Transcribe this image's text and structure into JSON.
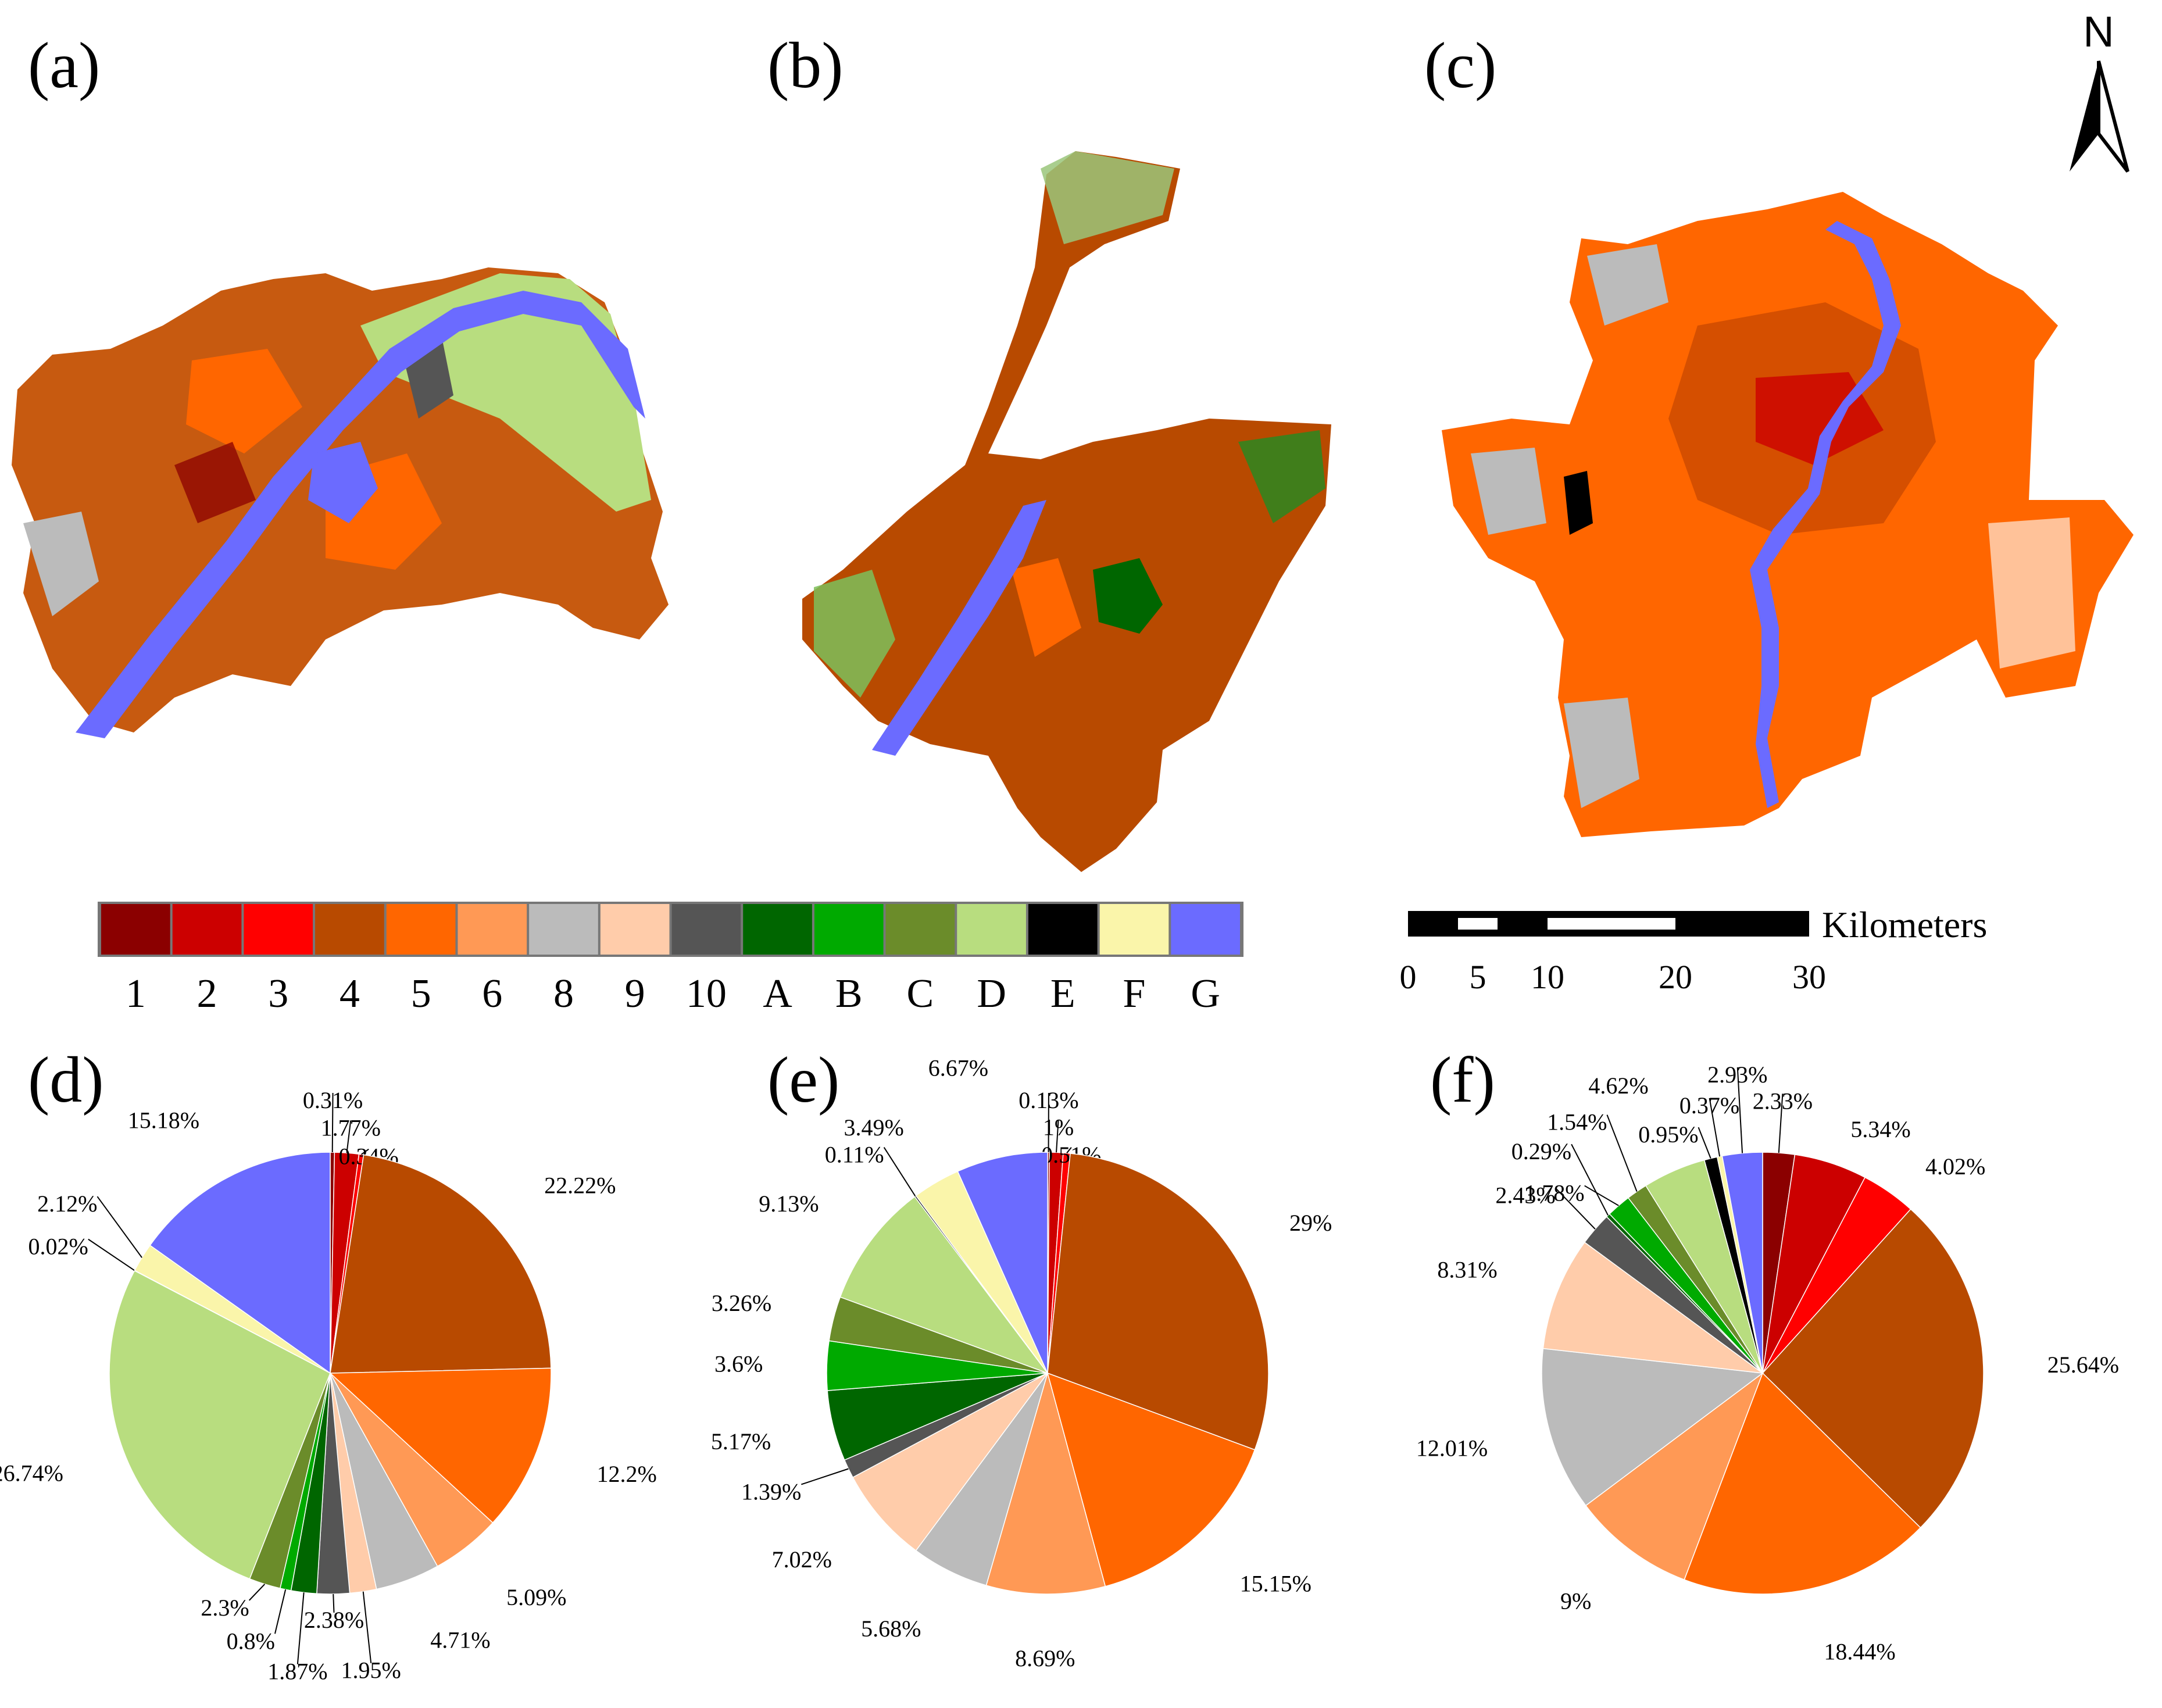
{
  "panels": {
    "a": "(a)",
    "b": "(b)",
    "c": "(c)",
    "d": "(d)",
    "e": "(e)",
    "f": "(f)"
  },
  "north_label": "N",
  "legend": {
    "items": [
      {
        "code": "1",
        "color": "#8b0000"
      },
      {
        "code": "2",
        "color": "#cc0000"
      },
      {
        "code": "3",
        "color": "#ff0000"
      },
      {
        "code": "4",
        "color": "#b84a00"
      },
      {
        "code": "5",
        "color": "#ff6600"
      },
      {
        "code": "6",
        "color": "#ff9955"
      },
      {
        "code": "8",
        "color": "#bbbbbb"
      },
      {
        "code": "9",
        "color": "#ffccaa"
      },
      {
        "code": "10",
        "color": "#555555"
      },
      {
        "code": "A",
        "color": "#006600"
      },
      {
        "code": "B",
        "color": "#00aa00"
      },
      {
        "code": "C",
        "color": "#6b8c2a"
      },
      {
        "code": "D",
        "color": "#b8dd7f"
      },
      {
        "code": "E",
        "color": "#000000"
      },
      {
        "code": "F",
        "color": "#faf5aa"
      },
      {
        "code": "G",
        "color": "#6b6bff"
      }
    ]
  },
  "scale_bar": {
    "unit": "Kilometers",
    "ticks": [
      "0",
      "5",
      "10",
      "20",
      "30"
    ]
  },
  "chart_data": [
    {
      "type": "pie",
      "title": "(d)",
      "slices": [
        {
          "class": "2",
          "value": 1.77,
          "label": "1.77%"
        },
        {
          "class": "3",
          "value": 0.34,
          "label": "0.34%"
        },
        {
          "class": "4",
          "value": 22.22,
          "label": "22.22%"
        },
        {
          "class": "5",
          "value": 12.2,
          "label": "12.2%"
        },
        {
          "class": "6",
          "value": 5.09,
          "label": "5.09%"
        },
        {
          "class": "8",
          "value": 4.71,
          "label": "4.71%"
        },
        {
          "class": "9",
          "value": 1.95,
          "label": "1.95%"
        },
        {
          "class": "10",
          "value": 2.38,
          "label": "2.38%"
        },
        {
          "class": "A",
          "value": 1.87,
          "label": "1.87%"
        },
        {
          "class": "B",
          "value": 0.8,
          "label": "0.8%"
        },
        {
          "class": "C",
          "value": 2.3,
          "label": "2.3%"
        },
        {
          "class": "D",
          "value": 26.74,
          "label": "26.74%"
        },
        {
          "class": "E",
          "value": 0.02,
          "label": "0.02%"
        },
        {
          "class": "F",
          "value": 2.12,
          "label": "2.12%"
        },
        {
          "class": "G",
          "value": 15.18,
          "label": "15.18%"
        },
        {
          "class": "1",
          "value": 0.31,
          "label": "0.31%"
        }
      ]
    },
    {
      "type": "pie",
      "title": "(e)",
      "slices": [
        {
          "class": "1",
          "value": 0.13,
          "label": "0.13%"
        },
        {
          "class": "2",
          "value": 1,
          "label": "1%"
        },
        {
          "class": "3",
          "value": 0.51,
          "label": "0.51%"
        },
        {
          "class": "4",
          "value": 29,
          "label": "29%"
        },
        {
          "class": "5",
          "value": 15.15,
          "label": "15.15%"
        },
        {
          "class": "6",
          "value": 8.69,
          "label": "8.69%"
        },
        {
          "class": "8",
          "value": 5.68,
          "label": "5.68%"
        },
        {
          "class": "9",
          "value": 7.02,
          "label": "7.02%"
        },
        {
          "class": "10",
          "value": 1.39,
          "label": "1.39%"
        },
        {
          "class": "A",
          "value": 5.17,
          "label": "5.17%"
        },
        {
          "class": "B",
          "value": 3.6,
          "label": "3.6%"
        },
        {
          "class": "C",
          "value": 3.26,
          "label": "3.26%"
        },
        {
          "class": "D",
          "value": 9.13,
          "label": "9.13%"
        },
        {
          "class": "E",
          "value": 0.11,
          "label": "0.11%"
        },
        {
          "class": "F",
          "value": 3.49,
          "label": "3.49%"
        },
        {
          "class": "G",
          "value": 6.67,
          "label": "6.67%"
        }
      ]
    },
    {
      "type": "pie",
      "title": "(f)",
      "slices": [
        {
          "class": "1",
          "value": 2.33,
          "label": "2.33%"
        },
        {
          "class": "2",
          "value": 5.34,
          "label": "5.34%"
        },
        {
          "class": "3",
          "value": 4.02,
          "label": "4.02%"
        },
        {
          "class": "4",
          "value": 25.64,
          "label": "25.64%"
        },
        {
          "class": "5",
          "value": 18.44,
          "label": "18.44%"
        },
        {
          "class": "6",
          "value": 9,
          "label": "9%"
        },
        {
          "class": "8",
          "value": 12.01,
          "label": "12.01%"
        },
        {
          "class": "9",
          "value": 8.31,
          "label": "8.31%"
        },
        {
          "class": "10",
          "value": 2.43,
          "label": "2.43%"
        },
        {
          "class": "A",
          "value": 0.29,
          "label": "0.29%"
        },
        {
          "class": "B",
          "value": 1.78,
          "label": "1.78%"
        },
        {
          "class": "C",
          "value": 1.54,
          "label": "1.54%"
        },
        {
          "class": "D",
          "value": 4.62,
          "label": "4.62%"
        },
        {
          "class": "E",
          "value": 0.95,
          "label": "0.95%"
        },
        {
          "class": "F",
          "value": 0.37,
          "label": "0.37%"
        },
        {
          "class": "G",
          "value": 2.93,
          "label": "2.93%"
        }
      ]
    }
  ]
}
